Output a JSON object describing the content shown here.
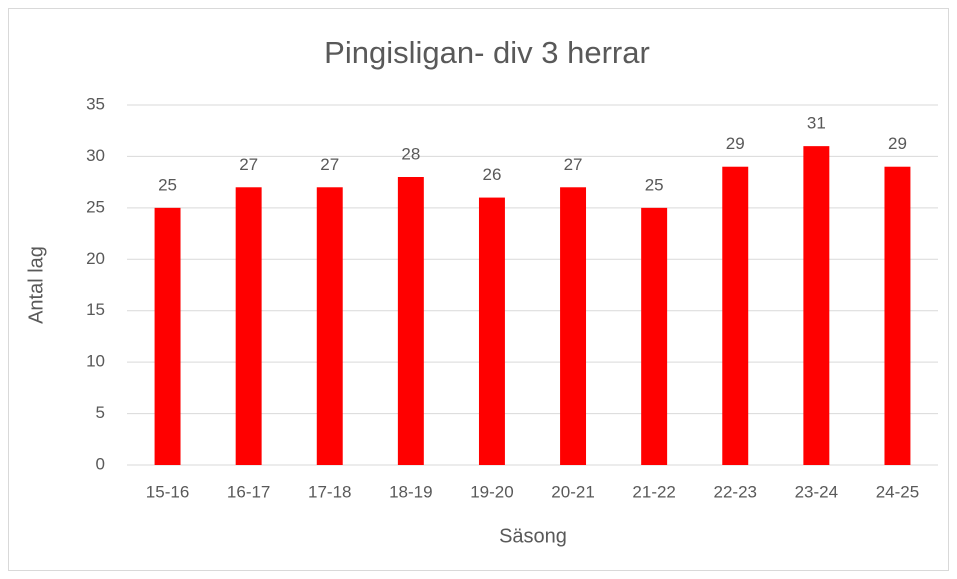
{
  "chart_data": {
    "type": "bar",
    "title": "Pingisligan- div 3 herrar",
    "x_label": "Säsong",
    "y_label": "Antal lag",
    "categories": [
      "15-16",
      "16-17",
      "17-18",
      "18-19",
      "19-20",
      "20-21",
      "21-22",
      "22-23",
      "23-24",
      "24-25"
    ],
    "values": [
      25,
      27,
      27,
      28,
      26,
      27,
      25,
      29,
      31,
      29
    ],
    "color": "#ff0000",
    "ylim": [
      0,
      35
    ],
    "yticks": [
      0,
      5,
      10,
      15,
      20,
      25,
      30,
      35
    ],
    "grid": true
  }
}
